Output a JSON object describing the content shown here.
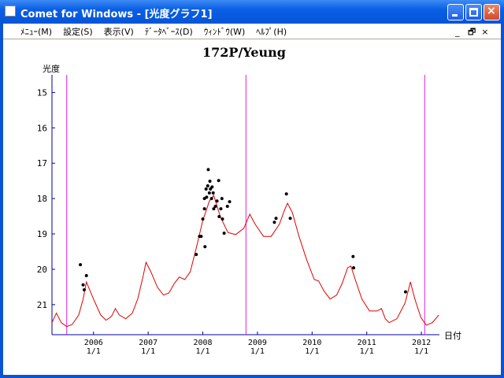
{
  "window": {
    "title": "Comet for Windows - [光度グラフ1]",
    "menu": [
      "ﾒﾆｭｰ(M)",
      "設定(S)",
      "表示(V)",
      "ﾃﾞｰﾀﾍﾞｰｽ(D)",
      "ｳｨﾝﾄﾞｳ(W)",
      "ﾍﾙﾌﾟ(H)"
    ]
  },
  "chart_data": {
    "type": "line",
    "title": "172P/Yeung",
    "y_label": "光度",
    "x_label": "日付",
    "xlim": [
      2005.24,
      2012.33
    ],
    "ylim": [
      14.5,
      21.85
    ],
    "y_inverted": true,
    "yticks": [
      15,
      16,
      17,
      18,
      19,
      20,
      21
    ],
    "xticks": [
      {
        "value": 2006,
        "label": "2006\n1/1"
      },
      {
        "value": 2007,
        "label": "2007\n1/1"
      },
      {
        "value": 2008,
        "label": "2008\n1/1"
      },
      {
        "value": 2009,
        "label": "2009\n1/1"
      },
      {
        "value": 2010,
        "label": "2010\n1/1"
      },
      {
        "value": 2011,
        "label": "2011\n1/1"
      },
      {
        "value": 2012,
        "label": "2012\n1/1"
      }
    ],
    "markers": [
      2005.51,
      2008.79,
      2012.06
    ],
    "marker_color": "#e020e0",
    "series": [
      {
        "color": "#e00000",
        "x": [
          2005.24,
          2005.32,
          2005.41,
          2005.51,
          2005.61,
          2005.73,
          2005.81,
          2005.87,
          2006.0,
          2006.13,
          2006.23,
          2006.33,
          2006.4,
          2006.47,
          2006.59,
          2006.71,
          2006.81,
          2006.91,
          2006.96,
          2007.05,
          2007.17,
          2007.28,
          2007.38,
          2007.48,
          2007.57,
          2007.67,
          2007.77,
          2007.88,
          2008.0,
          2008.12,
          2008.2,
          2008.32,
          2008.46,
          2008.6,
          2008.75,
          2008.86,
          2008.96,
          2009.11,
          2009.25,
          2009.4,
          2009.5,
          2009.55,
          2009.64,
          2009.76,
          2009.9,
          2010.04,
          2010.12,
          2010.22,
          2010.33,
          2010.45,
          2010.55,
          2010.65,
          2010.71,
          2010.79,
          2010.91,
          2011.05,
          2011.19,
          2011.27,
          2011.34,
          2011.41,
          2011.55,
          2011.7,
          2011.8,
          2011.88,
          2011.99,
          2012.09,
          2012.2,
          2012.32
        ],
        "values": [
          21.51,
          21.24,
          21.51,
          21.62,
          21.56,
          21.29,
          20.84,
          20.36,
          20.84,
          21.29,
          21.44,
          21.33,
          21.11,
          21.29,
          21.4,
          21.24,
          20.84,
          20.18,
          19.8,
          20.07,
          20.51,
          20.73,
          20.67,
          20.4,
          20.22,
          20.29,
          20.07,
          19.4,
          18.62,
          18.07,
          17.91,
          18.51,
          18.96,
          19.02,
          18.84,
          18.44,
          18.73,
          19.07,
          19.07,
          18.73,
          18.31,
          18.13,
          18.4,
          19.07,
          19.73,
          20.29,
          20.33,
          20.62,
          20.84,
          20.73,
          20.4,
          19.96,
          19.91,
          20.29,
          20.84,
          21.18,
          21.18,
          21.11,
          21.4,
          21.51,
          21.4,
          20.96,
          20.36,
          20.84,
          21.36,
          21.58,
          21.51,
          21.29
        ]
      },
      {
        "color": "#000000",
        "scatter": true,
        "x": [
          2005.76,
          2005.81,
          2005.87,
          2005.83,
          2007.88,
          2007.94,
          2007.97,
          2008.0,
          2008.03,
          2008.03,
          2008.04,
          2008.06,
          2008.07,
          2008.09,
          2008.1,
          2008.12,
          2008.13,
          2008.14,
          2008.16,
          2008.17,
          2008.19,
          2008.2,
          2008.23,
          2008.26,
          2008.29,
          2008.3,
          2008.33,
          2008.35,
          2008.36,
          2008.39,
          2008.45,
          2008.49,
          2009.31,
          2009.34,
          2009.53,
          2009.6,
          2010.75,
          2010.76,
          2011.71
        ],
        "values": [
          19.87,
          20.44,
          20.18,
          20.58,
          19.58,
          19.07,
          19.07,
          18.58,
          18.29,
          18.0,
          19.36,
          17.73,
          17.96,
          17.64,
          17.18,
          17.84,
          17.51,
          17.73,
          18.0,
          17.67,
          17.84,
          18.29,
          18.22,
          18.07,
          17.49,
          18.51,
          18.29,
          18.0,
          18.58,
          18.98,
          18.22,
          18.09,
          18.67,
          18.56,
          17.87,
          18.56,
          19.64,
          19.96,
          20.64
        ]
      }
    ]
  }
}
